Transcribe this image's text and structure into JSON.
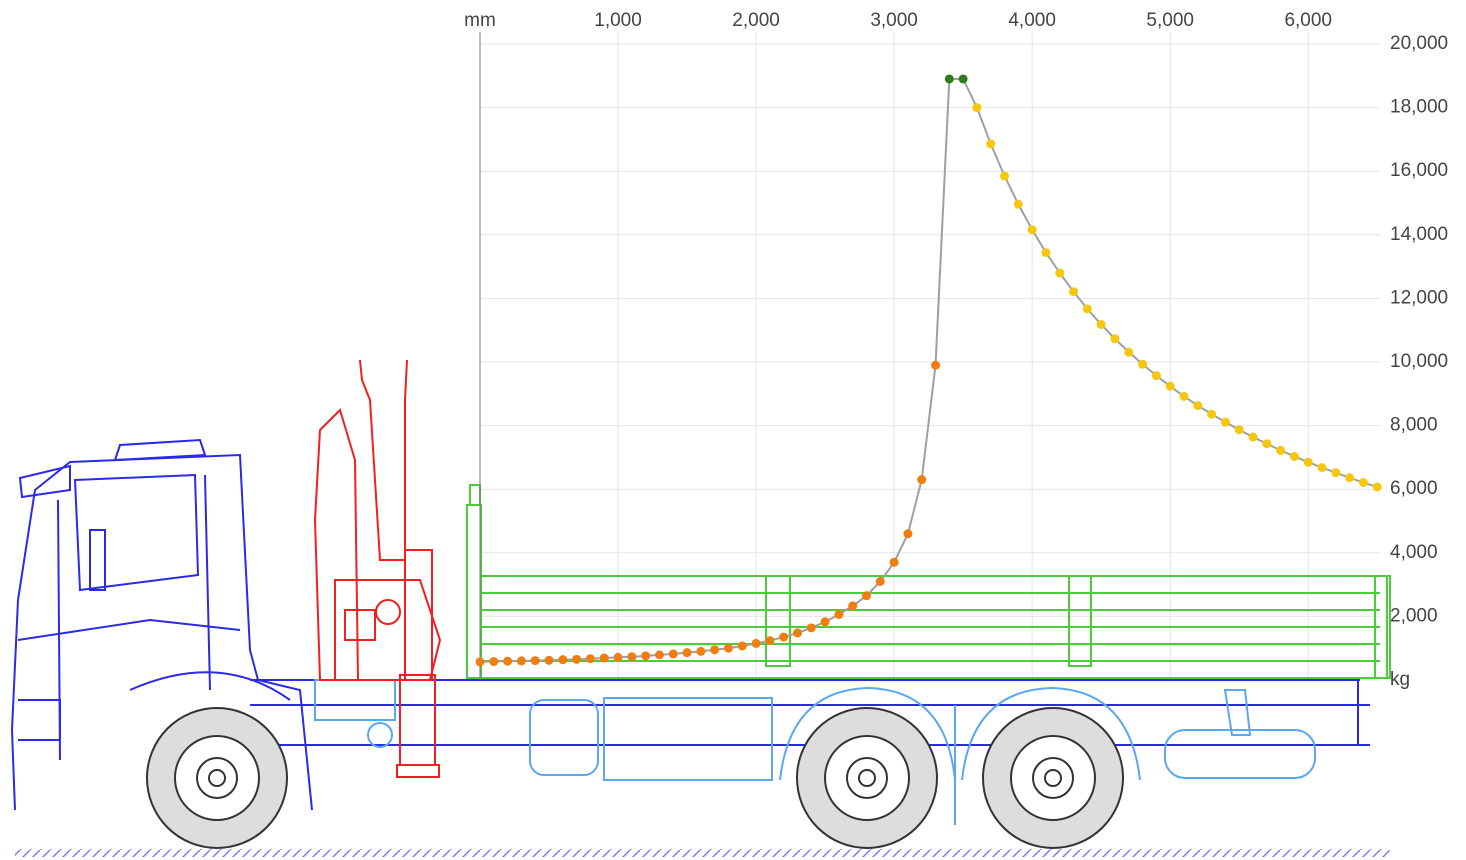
{
  "chart_data": {
    "type": "scatter",
    "xlim": [
      0,
      6520
    ],
    "ylim": [
      0,
      20000
    ],
    "xticks": [
      {
        "value": 0,
        "label": "mm"
      },
      {
        "value": 1000,
        "label": "1,000"
      },
      {
        "value": 2000,
        "label": "2,000"
      },
      {
        "value": 3000,
        "label": "3,000"
      },
      {
        "value": 4000,
        "label": "4,000"
      },
      {
        "value": 5000,
        "label": "5,000"
      },
      {
        "value": 6000,
        "label": "6,000"
      }
    ],
    "yticks": [
      {
        "value": 0,
        "label": "kg"
      },
      {
        "value": 2000,
        "label": "2,000"
      },
      {
        "value": 4000,
        "label": "4,000"
      },
      {
        "value": 6000,
        "label": "6,000"
      },
      {
        "value": 8000,
        "label": "8,000"
      },
      {
        "value": 10000,
        "label": "10,000"
      },
      {
        "value": 12000,
        "label": "12,000"
      },
      {
        "value": 14000,
        "label": "14,000"
      },
      {
        "value": 16000,
        "label": "16,000"
      },
      {
        "value": 18000,
        "label": "18,000"
      },
      {
        "value": 20000,
        "label": "20,000"
      }
    ],
    "grid": true,
    "line_color": "#a0a0a0",
    "series": [
      {
        "color": "#f07d10",
        "x": [
          0,
          100,
          200,
          300,
          400,
          500,
          600,
          700,
          800,
          900,
          1000,
          1100,
          1200,
          1300,
          1400,
          1500,
          1600,
          1700,
          1800,
          1900,
          2000,
          2100,
          2200,
          2300,
          2400,
          2500,
          2600,
          2700,
          2800,
          2900,
          3000,
          3100,
          3200,
          3300
        ],
        "values": [
          570,
          580,
          590,
          600,
          610,
          620,
          640,
          650,
          670,
          690,
          710,
          730,
          760,
          790,
          820,
          860,
          900,
          950,
          1000,
          1070,
          1150,
          1240,
          1350,
          1480,
          1640,
          1830,
          2060,
          2330,
          2650,
          3100,
          3700,
          4600,
          6300,
          9900
        ]
      },
      {
        "color": "#2e7d1a",
        "x": [
          3400,
          3500
        ],
        "values": [
          18900,
          18900
        ]
      },
      {
        "color": "#f5c80f",
        "x": [
          3600,
          3700,
          3800,
          3900,
          4000,
          4100,
          4200,
          4300,
          4400,
          4500,
          4600,
          4700,
          4800,
          4900,
          5000,
          5100,
          5200,
          5300,
          5400,
          5500,
          5600,
          5700,
          5800,
          5900,
          6000,
          6100,
          6200,
          6300,
          6400,
          6500
        ],
        "values": [
          18000,
          16860,
          15850,
          14960,
          14160,
          13440,
          12800,
          12210,
          11670,
          11180,
          10730,
          10310,
          9930,
          9570,
          9240,
          8920,
          8630,
          8360,
          8110,
          7870,
          7640,
          7430,
          7220,
          7030,
          6850,
          6680,
          6520,
          6360,
          6210,
          6070
        ]
      }
    ]
  }
}
